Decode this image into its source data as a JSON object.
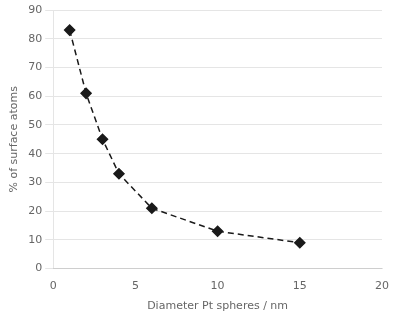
{
  "chart_data": {
    "type": "line",
    "x": [
      1,
      2,
      3,
      4,
      6,
      10,
      15
    ],
    "values": [
      83,
      61,
      45,
      33,
      21,
      13,
      9
    ],
    "xlabel": "Diameter Pt spheres / nm",
    "ylabel": "% of surface atoms",
    "xlim": [
      0,
      20
    ],
    "ylim": [
      0,
      90
    ],
    "xticks": [
      0,
      5,
      10,
      15,
      20
    ],
    "yticks": [
      0,
      10,
      20,
      30,
      40,
      50,
      60,
      70,
      80,
      90
    ],
    "color": "#1a1a1a",
    "marker": "diamond",
    "line_style": "dashed",
    "grid": "y"
  }
}
